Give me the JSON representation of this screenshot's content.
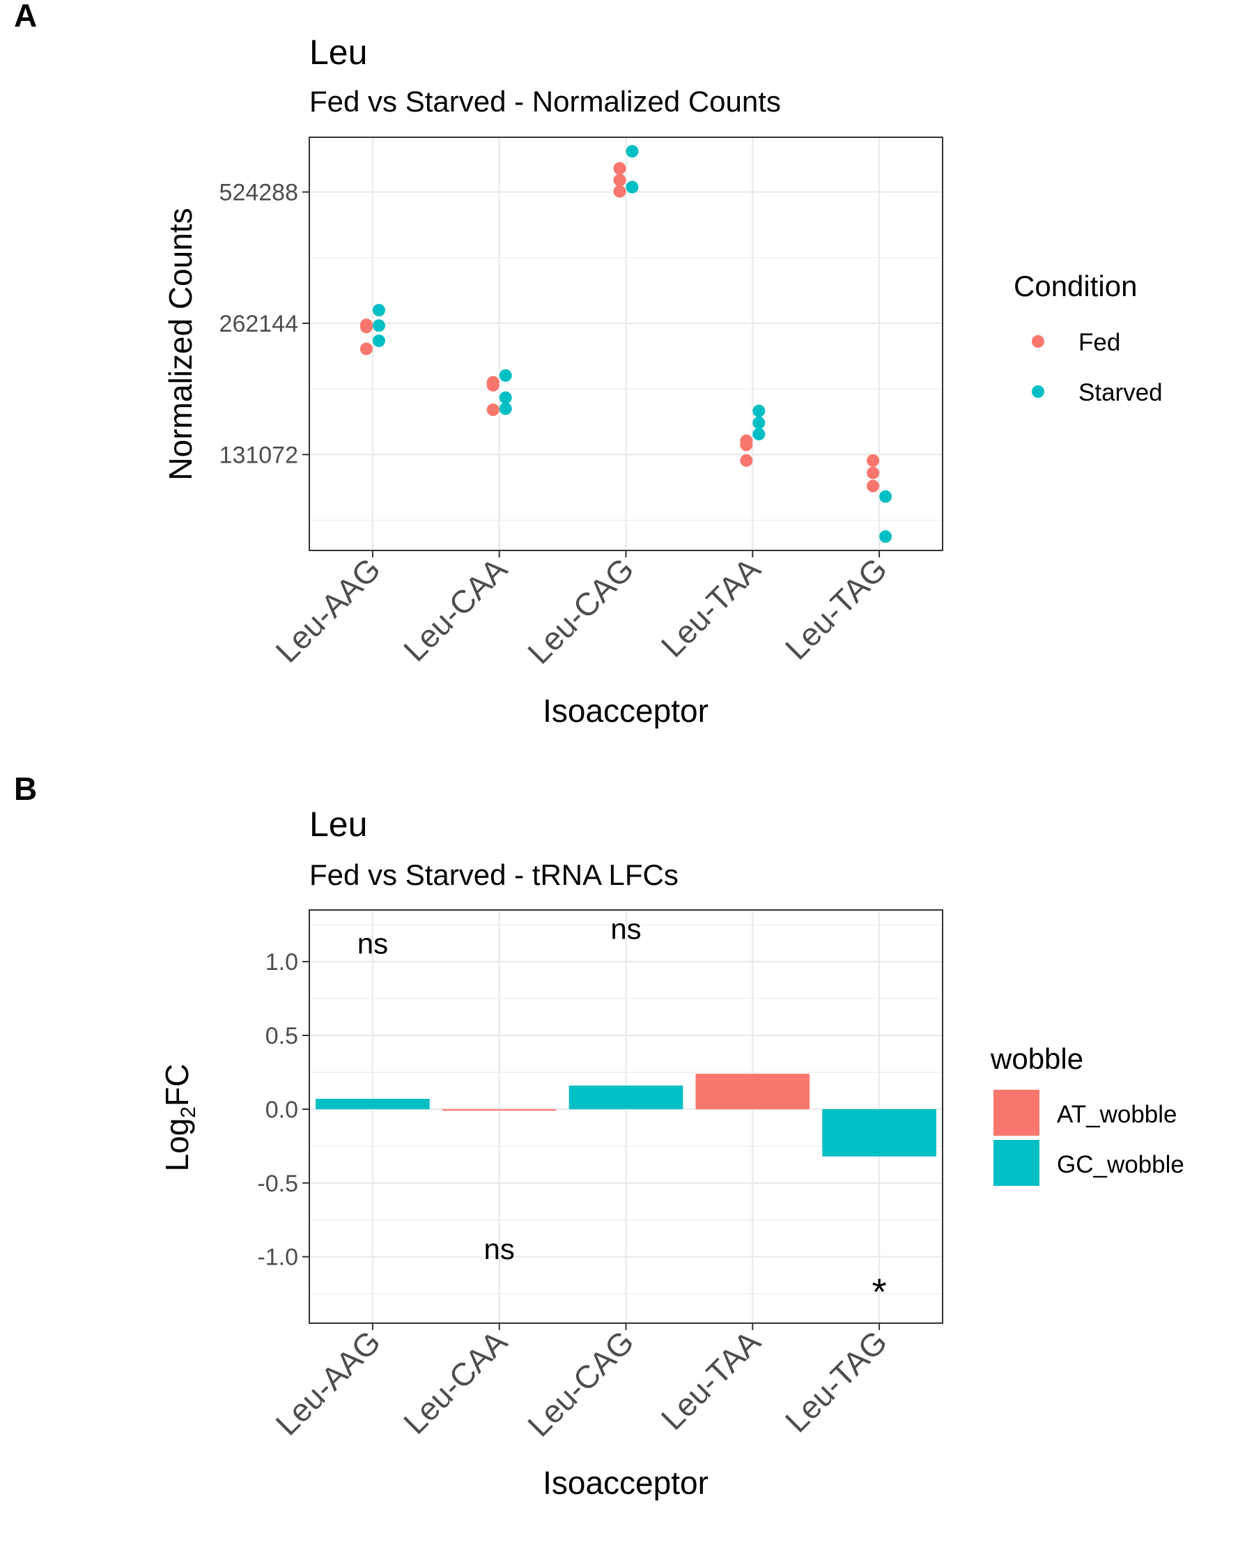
{
  "figure": {
    "panel_labels": [
      "A",
      "B"
    ]
  },
  "colors": {
    "fed": "#F8766D",
    "starved": "#00BFC4",
    "at_wobble": "#F8766D",
    "gc_wobble": "#00BFC4",
    "grid": "#EBEBEB",
    "axis_text": "#4D4D4D",
    "panel_border": "#333333",
    "text": "#000000"
  },
  "chart_data": [
    {
      "type": "scatter",
      "panel": "A",
      "title": "Leu",
      "subtitle": "Fed vs Starved - Normalized Counts",
      "xlabel": "Isoacceptor",
      "ylabel": "Normalized Counts",
      "y_scale": "log2",
      "categories": [
        "Leu-AAG",
        "Leu-CAA",
        "Leu-CAG",
        "Leu-TAA",
        "Leu-TAG"
      ],
      "yticks": [
        131072,
        262144,
        524288
      ],
      "ytick_labels": [
        "131072",
        "262144",
        "524288"
      ],
      "ylim": [
        79000,
        700000
      ],
      "grid": true,
      "legend": {
        "title": "Condition",
        "position": "right",
        "entries": [
          "Fed",
          "Starved"
        ]
      },
      "series": [
        {
          "name": "Fed",
          "points": [
            {
              "x": "Leu-AAG",
              "y": 229000
            },
            {
              "x": "Leu-AAG",
              "y": 257000
            },
            {
              "x": "Leu-AAG",
              "y": 260000
            },
            {
              "x": "Leu-CAA",
              "y": 189000
            },
            {
              "x": "Leu-CAA",
              "y": 192000
            },
            {
              "x": "Leu-CAA",
              "y": 166000
            },
            {
              "x": "Leu-CAG",
              "y": 594000
            },
            {
              "x": "Leu-CAG",
              "y": 558000
            },
            {
              "x": "Leu-CAG",
              "y": 526000
            },
            {
              "x": "Leu-TAA",
              "y": 141000
            },
            {
              "x": "Leu-TAA",
              "y": 138000
            },
            {
              "x": "Leu-TAA",
              "y": 127000
            },
            {
              "x": "Leu-TAG",
              "y": 127000
            },
            {
              "x": "Leu-TAG",
              "y": 119000
            },
            {
              "x": "Leu-TAG",
              "y": 111000
            }
          ]
        },
        {
          "name": "Starved",
          "points": [
            {
              "x": "Leu-AAG",
              "y": 281000
            },
            {
              "x": "Leu-AAG",
              "y": 259000
            },
            {
              "x": "Leu-AAG",
              "y": 239000
            },
            {
              "x": "Leu-CAA",
              "y": 199000
            },
            {
              "x": "Leu-CAA",
              "y": 177000
            },
            {
              "x": "Leu-CAA",
              "y": 167000
            },
            {
              "x": "Leu-CAG",
              "y": 650000
            },
            {
              "x": "Leu-CAG",
              "y": 538000
            },
            {
              "x": "Leu-TAA",
              "y": 165000
            },
            {
              "x": "Leu-TAA",
              "y": 155000
            },
            {
              "x": "Leu-TAA",
              "y": 146000
            },
            {
              "x": "Leu-TAG",
              "y": 105000
            },
            {
              "x": "Leu-TAG",
              "y": 85000
            }
          ]
        }
      ]
    },
    {
      "type": "bar",
      "panel": "B",
      "title": "Leu",
      "subtitle": "Fed vs Starved - tRNA LFCs",
      "xlabel": "Isoacceptor",
      "ylabel_main": "Log",
      "ylabel_sub": "2",
      "ylabel_tail": "FC",
      "categories": [
        "Leu-AAG",
        "Leu-CAA",
        "Leu-CAG",
        "Leu-TAA",
        "Leu-TAG"
      ],
      "values": [
        0.07,
        -0.01,
        0.16,
        0.24,
        -0.32
      ],
      "wobble": [
        "GC_wobble",
        "AT_wobble",
        "GC_wobble",
        "AT_wobble",
        "GC_wobble"
      ],
      "yticks": [
        -1.0,
        -0.5,
        0.0,
        0.5,
        1.0
      ],
      "ytick_labels": [
        "-1.0",
        "-0.5",
        "0.0",
        "0.5",
        "1.0"
      ],
      "ylim": [
        -1.45,
        1.35
      ],
      "grid": true,
      "annotations": [
        {
          "x": "Leu-AAG",
          "y": 1.12,
          "text": "ns"
        },
        {
          "x": "Leu-CAA",
          "y": -0.95,
          "text": "ns"
        },
        {
          "x": "Leu-CAG",
          "y": 1.22,
          "text": "ns"
        },
        {
          "x": "Leu-TAG",
          "y": -1.22,
          "text": "*"
        }
      ],
      "legend": {
        "title": "wobble",
        "position": "right",
        "entries": [
          "AT_wobble",
          "GC_wobble"
        ]
      }
    }
  ]
}
